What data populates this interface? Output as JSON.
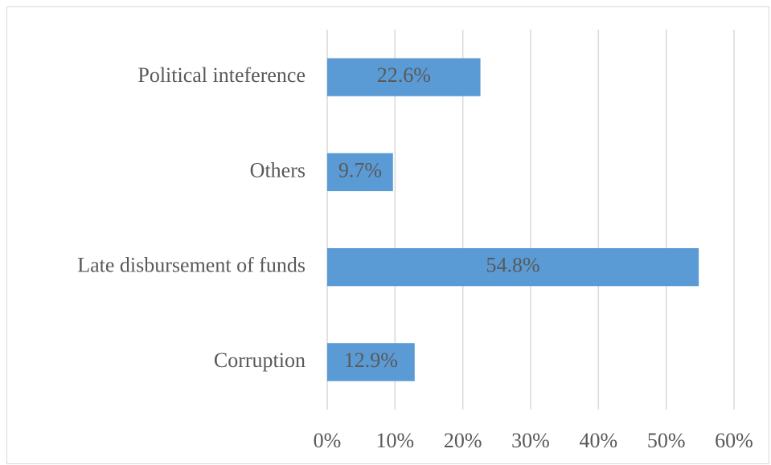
{
  "chart_data": {
    "type": "bar",
    "orientation": "horizontal",
    "categories": [
      "Political inteference",
      "Others",
      "Late disbursement of funds",
      "Corruption"
    ],
    "values": [
      22.6,
      9.7,
      54.8,
      12.9
    ],
    "value_labels": [
      "22.6%",
      "9.7%",
      "54.8%",
      "12.9%"
    ],
    "color": "#5b9bd5",
    "xlim": [
      0,
      60
    ],
    "xticks": [
      {
        "value": 0,
        "label": "0%"
      },
      {
        "value": 10,
        "label": "10%"
      },
      {
        "value": 20,
        "label": "20%"
      },
      {
        "value": 30,
        "label": "30%"
      },
      {
        "value": 40,
        "label": "40%"
      },
      {
        "value": 50,
        "label": "50%"
      },
      {
        "value": 60,
        "label": "60%"
      }
    ],
    "grid": true
  }
}
